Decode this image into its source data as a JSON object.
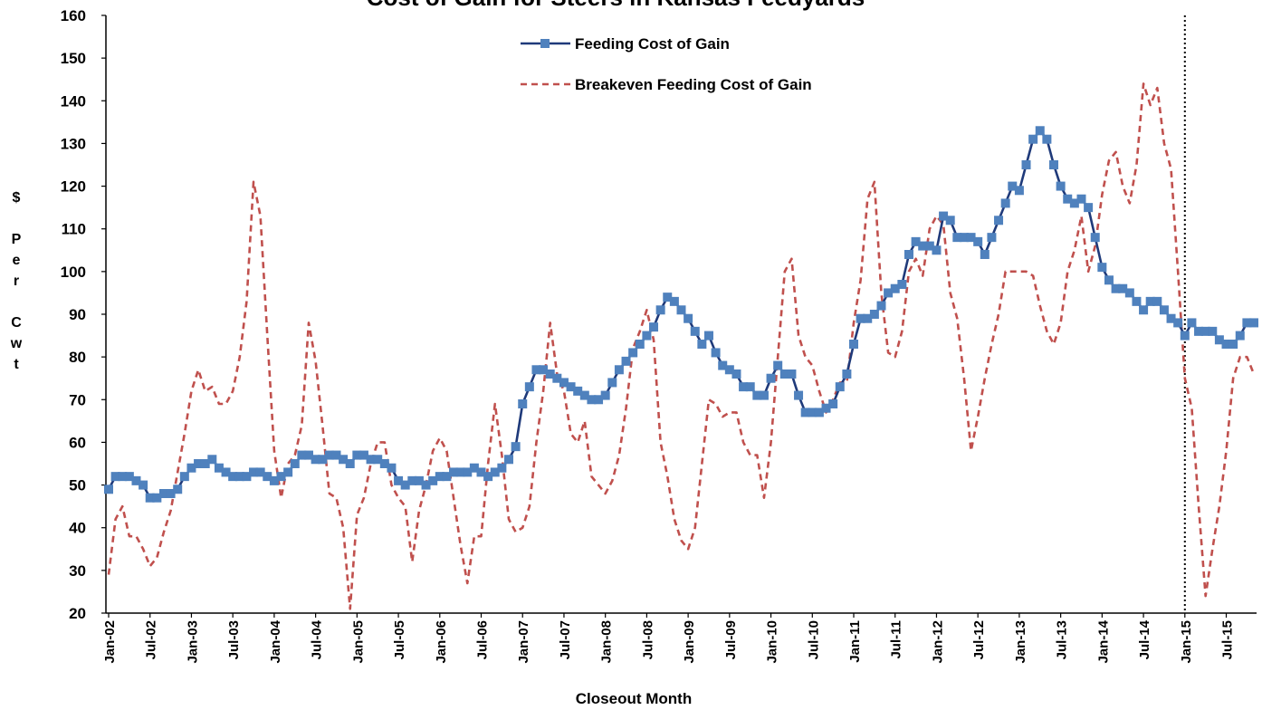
{
  "chart_data": {
    "type": "line",
    "title": "Cost of Gain for Steers in Kansas Feedyards",
    "x_label": "Closeout Month",
    "y_label": "$ Per Cwt",
    "categories": [
      "Jan-02",
      null,
      null,
      null,
      null,
      null,
      "Jul-02",
      null,
      null,
      null,
      null,
      null,
      "Jan-03",
      null,
      null,
      null,
      null,
      null,
      "Jul-03",
      null,
      null,
      null,
      null,
      null,
      "Jan-04",
      null,
      null,
      null,
      null,
      null,
      "Jul-04",
      null,
      null,
      null,
      null,
      null,
      "Jan-05",
      null,
      null,
      null,
      null,
      null,
      "Jul-05",
      null,
      null,
      null,
      null,
      null,
      "Jan-06",
      null,
      null,
      null,
      null,
      null,
      "Jul-06",
      null,
      null,
      null,
      null,
      null,
      "Jan-07",
      null,
      null,
      null,
      null,
      null,
      "Jul-07",
      null,
      null,
      null,
      null,
      null,
      "Jan-08",
      null,
      null,
      null,
      null,
      null,
      "Jul-08",
      null,
      null,
      null,
      null,
      null,
      "Jan-09",
      null,
      null,
      null,
      null,
      null,
      "Jul-09",
      null,
      null,
      null,
      null,
      null,
      "Jan-10",
      null,
      null,
      null,
      null,
      null,
      "Jul-10",
      null,
      null,
      null,
      null,
      null,
      "Jan-11",
      null,
      null,
      null,
      null,
      null,
      "Jul-11",
      null,
      null,
      null,
      null,
      null,
      "Jan-12",
      null,
      null,
      null,
      null,
      null,
      "Jul-12",
      null,
      null,
      null,
      null,
      null,
      "Jan-13",
      null,
      null,
      null,
      null,
      null,
      "Jul-13",
      null,
      null,
      null,
      null,
      null,
      "Jan-14",
      null,
      null,
      null,
      null,
      null,
      "Jul-14",
      null,
      null,
      null,
      null,
      null,
      "Jan-15",
      null,
      null,
      null,
      null,
      null,
      "Jul-15",
      null,
      null,
      null,
      null
    ],
    "series": [
      {
        "name": "Feeding Cost of Gain",
        "color": "#1f3a7a",
        "marker_color": "#4f81bd",
        "marker": "square",
        "line_style": "solid",
        "values": [
          49,
          52,
          52,
          52,
          51,
          50,
          47,
          47,
          48,
          48,
          49,
          52,
          54,
          55,
          55,
          56,
          54,
          53,
          52,
          52,
          52,
          53,
          53,
          52,
          51,
          52,
          53,
          55,
          57,
          57,
          56,
          56,
          57,
          57,
          56,
          55,
          57,
          57,
          56,
          56,
          55,
          54,
          51,
          50,
          51,
          51,
          50,
          51,
          52,
          52,
          53,
          53,
          53,
          54,
          53,
          52,
          53,
          54,
          56,
          59,
          69,
          73,
          77,
          77,
          76,
          75,
          74,
          73,
          72,
          71,
          70,
          70,
          71,
          74,
          77,
          79,
          81,
          83,
          85,
          87,
          91,
          94,
          93,
          91,
          89,
          86,
          83,
          85,
          81,
          78,
          77,
          76,
          73,
          73,
          71,
          71,
          75,
          78,
          76,
          76,
          71,
          67,
          67,
          67,
          68,
          69,
          73,
          76,
          83,
          89,
          89,
          90,
          92,
          95,
          96,
          97,
          104,
          107,
          106,
          106,
          105,
          113,
          112,
          108,
          108,
          108,
          107,
          104,
          108,
          112,
          116,
          120,
          119,
          125,
          131,
          133,
          131,
          125,
          120,
          117,
          116,
          117,
          115,
          108,
          101,
          98,
          96,
          96,
          95,
          93,
          91,
          93,
          93,
          91,
          89,
          88,
          85,
          88,
          86,
          86,
          86,
          84,
          83,
          83,
          85,
          88,
          88
        ]
      },
      {
        "name": "Breakeven Feeding Cost of Gain",
        "color": "#c0504d",
        "marker": "none",
        "line_style": "dashed",
        "values": [
          29,
          42,
          45,
          38,
          38,
          35,
          31,
          33,
          39,
          44,
          53,
          62,
          72,
          77,
          72,
          73,
          69,
          69,
          72,
          80,
          93,
          121,
          113,
          85,
          58,
          47,
          55,
          57,
          64,
          88,
          79,
          64,
          48,
          47,
          40,
          21,
          43,
          47,
          55,
          60,
          60,
          50,
          47,
          45,
          32,
          44,
          50,
          58,
          61,
          58,
          47,
          36,
          27,
          38,
          38,
          55,
          69,
          57,
          42,
          39,
          40,
          45,
          60,
          72,
          88,
          76,
          72,
          62,
          60,
          65,
          52,
          50,
          48,
          51,
          57,
          68,
          82,
          86,
          91,
          84,
          60,
          52,
          42,
          37,
          35,
          40,
          55,
          70,
          69,
          66,
          67,
          67,
          60,
          57,
          57,
          47,
          60,
          80,
          100,
          103,
          85,
          80,
          78,
          72,
          67,
          70,
          74,
          74,
          88,
          98,
          117,
          121,
          95,
          81,
          80,
          86,
          100,
          103,
          99,
          110,
          113,
          111,
          95,
          89,
          75,
          58,
          66,
          75,
          83,
          90,
          100,
          100,
          100,
          100,
          99,
          92,
          86,
          83,
          88,
          100,
          105,
          113,
          100,
          106,
          118,
          126,
          128,
          120,
          116,
          125,
          144,
          139,
          143,
          130,
          124,
          100,
          75,
          68,
          45,
          24,
          35,
          45,
          58,
          75,
          80,
          80,
          76
        ]
      }
    ],
    "ylim": [
      20,
      160
    ],
    "yticks": [
      20,
      30,
      40,
      50,
      60,
      70,
      80,
      90,
      100,
      110,
      120,
      130,
      140,
      150,
      160
    ],
    "vline": "Jan-15",
    "grid": false,
    "legend": "top-center"
  }
}
